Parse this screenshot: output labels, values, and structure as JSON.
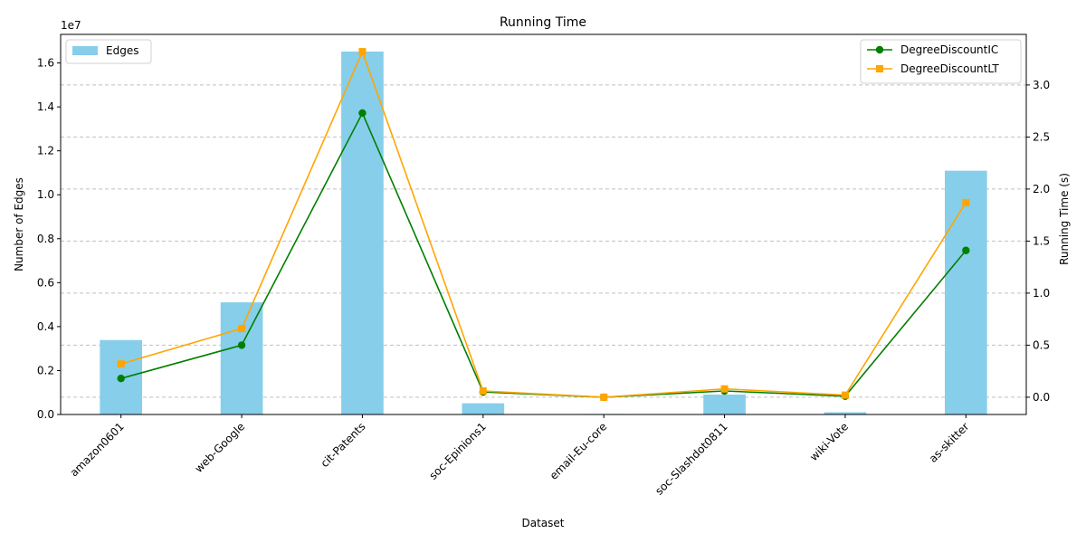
{
  "chart_data": {
    "type": "bar+line",
    "title": "Running Time",
    "xlabel": "Dataset",
    "ylabel_left": "Number of Edges",
    "ylabel_right": "Running Time (s)",
    "left_axis_multiplier": "1e7",
    "categories": [
      "amazon0601",
      "web-Google",
      "cit-Patents",
      "soc-Epinions1",
      "email-Eu-core",
      "soc-Slashdot0811",
      "wiki-Vote",
      "as-skitter"
    ],
    "bar_series": {
      "name": "Edges",
      "color": "#87ceeb",
      "values": [
        3387388,
        5105039,
        16518948,
        508837,
        25571,
        905468,
        103689,
        11095298
      ]
    },
    "line_series": [
      {
        "name": "DegreeDiscountIC",
        "color": "#008000",
        "marker": "circle",
        "values": [
          0.18,
          0.5,
          2.73,
          0.05,
          0.0,
          0.06,
          0.01,
          1.41
        ]
      },
      {
        "name": "DegreeDiscountLT",
        "color": "#ffa500",
        "marker": "square",
        "values": [
          0.32,
          0.66,
          3.32,
          0.06,
          0.0,
          0.08,
          0.02,
          1.87
        ]
      }
    ],
    "ylim_left": [
      0,
      17300000
    ],
    "yticks_left": [
      "0.0",
      "0.2",
      "0.4",
      "0.6",
      "0.8",
      "1.0",
      "1.2",
      "1.4",
      "1.6"
    ],
    "ylim_right": [
      -0.166,
      3.486
    ],
    "yticks_right": [
      "0.0",
      "0.5",
      "1.0",
      "1.5",
      "2.0",
      "2.5",
      "3.0"
    ],
    "grid": "horizontal dashed on right axis",
    "legend_left_placement": "top-left",
    "legend_right_placement": "top-right"
  }
}
